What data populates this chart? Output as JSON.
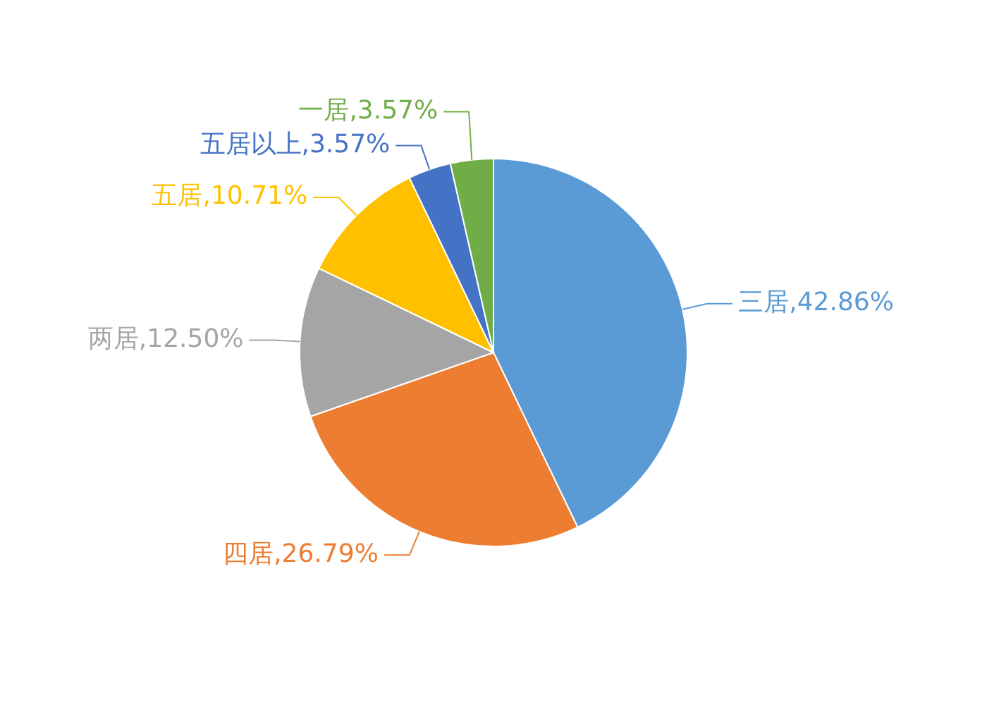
{
  "chart_data": {
    "type": "pie",
    "categories": [
      "三居",
      "四居",
      "两居",
      "五居",
      "五居以上",
      "一居"
    ],
    "values": [
      42.86,
      26.79,
      12.5,
      10.71,
      3.57,
      3.57
    ],
    "value_labels": [
      "42.86%",
      "26.79%",
      "12.50%",
      "10.71%",
      "3.57%",
      "3.57%"
    ],
    "colors": [
      "#5b9bd5",
      "#ed7d31",
      "#a5a5a5",
      "#ffc000",
      "#4472c4",
      "#70ad47"
    ],
    "legend": false
  }
}
